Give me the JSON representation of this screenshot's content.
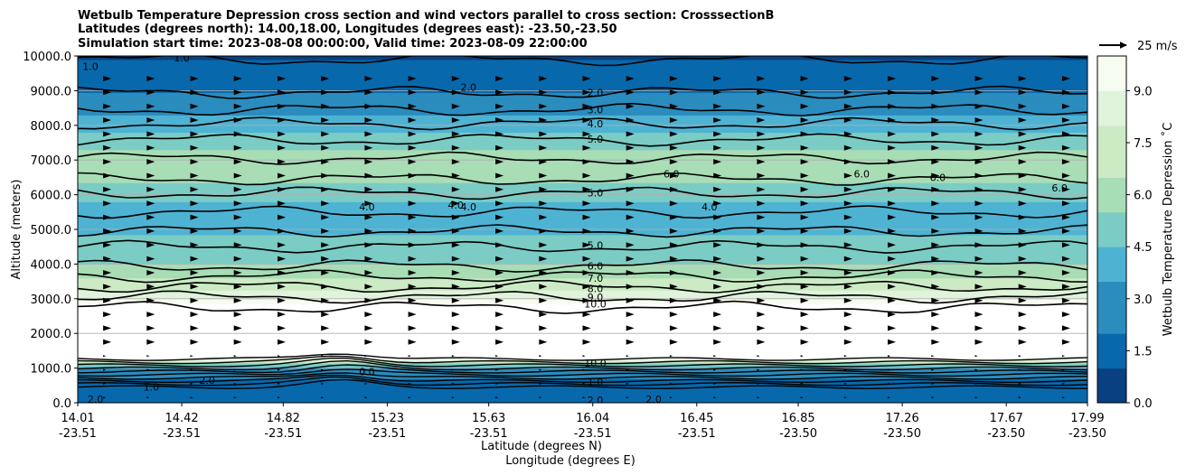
{
  "chart_data": {
    "type": "contour",
    "title_lines": [
      "Wetbulb Temperature Depression cross section and wind vectors parallel to cross section: CrosssectionB",
      "Latitudes (degrees north): 14.00,18.00, Longitudes (degrees east): -23.50,-23.50",
      "Simulation start time: 2023-08-08 00:00:00, Valid time: 2023-08-09 22:00:00"
    ],
    "xlabel_line1": "Latitude (degrees N)",
    "xlabel_line2": "Longitude (degrees E)",
    "ylabel": "Altitude (meters)",
    "colorbar_label": "Wetbulb Temperature Depression ˚C",
    "quiver_key": "25 m/s",
    "xlim": [
      14.01,
      17.99
    ],
    "ylim": [
      0,
      10000
    ],
    "grid": "horizontal",
    "x_ticks": [
      {
        "lat": "14.01",
        "lon": "-23.51",
        "v": 14.01
      },
      {
        "lat": "14.42",
        "lon": "-23.51",
        "v": 14.42
      },
      {
        "lat": "14.82",
        "lon": "-23.51",
        "v": 14.82
      },
      {
        "lat": "15.23",
        "lon": "-23.51",
        "v": 15.23
      },
      {
        "lat": "15.63",
        "lon": "-23.51",
        "v": 15.63
      },
      {
        "lat": "16.04",
        "lon": "-23.51",
        "v": 16.04
      },
      {
        "lat": "16.45",
        "lon": "-23.51",
        "v": 16.45
      },
      {
        "lat": "16.85",
        "lon": "-23.50",
        "v": 16.85
      },
      {
        "lat": "17.26",
        "lon": "-23.50",
        "v": 17.26
      },
      {
        "lat": "17.67",
        "lon": "-23.50",
        "v": 17.67
      },
      {
        "lat": "17.99",
        "lon": "-23.50",
        "v": 17.99
      }
    ],
    "y_ticks": [
      {
        "label": "0.0",
        "v": 0
      },
      {
        "label": "1000.0",
        "v": 1000
      },
      {
        "label": "2000.0",
        "v": 2000
      },
      {
        "label": "3000.0",
        "v": 3000
      },
      {
        "label": "4000.0",
        "v": 4000
      },
      {
        "label": "5000.0",
        "v": 5000
      },
      {
        "label": "6000.0",
        "v": 6000
      },
      {
        "label": "7000.0",
        "v": 7000
      },
      {
        "label": "8000.0",
        "v": 8000
      },
      {
        "label": "9000.0",
        "v": 9000
      },
      {
        "label": "10000.0",
        "v": 10000
      }
    ],
    "colorbar_ticks": [
      {
        "label": "0.0",
        "v": 0
      },
      {
        "label": "1.5",
        "v": 1.5
      },
      {
        "label": "3.0",
        "v": 3.0
      },
      {
        "label": "4.5",
        "v": 4.5
      },
      {
        "label": "6.0",
        "v": 6.0
      },
      {
        "label": "7.5",
        "v": 7.5
      },
      {
        "label": "9.0",
        "v": 9.0
      }
    ],
    "colorbar_range": [
      0,
      10
    ],
    "colormap": [
      "#084081",
      "#0868ac",
      "#2b8cbe",
      "#4eb3d3",
      "#7bccc4",
      "#a8ddb5",
      "#ccebc5",
      "#e0f3db",
      "#f7fcf0"
    ],
    "depression_profile": [
      {
        "alt": 0,
        "val": 1.5
      },
      {
        "alt": 400,
        "val": 1.5
      },
      {
        "alt": 700,
        "val": 2.2
      },
      {
        "alt": 1000,
        "val": 3.2
      },
      {
        "alt": 1150,
        "val": 6.0
      },
      {
        "alt": 1300,
        "val": 10.0
      },
      {
        "alt": 2700,
        "val": 10.0
      },
      {
        "alt": 3000,
        "val": 9.0
      },
      {
        "alt": 3200,
        "val": 8.0
      },
      {
        "alt": 3500,
        "val": 7.0
      },
      {
        "alt": 3800,
        "val": 6.0
      },
      {
        "alt": 4300,
        "val": 5.0
      },
      {
        "alt": 4800,
        "val": 4.5
      },
      {
        "alt": 5200,
        "val": 4.2
      },
      {
        "alt": 5600,
        "val": 3.8
      },
      {
        "alt": 6000,
        "val": 5.0
      },
      {
        "alt": 6500,
        "val": 5.8
      },
      {
        "alt": 7000,
        "val": 6.2
      },
      {
        "alt": 7500,
        "val": 5.2
      },
      {
        "alt": 7800,
        "val": 4.5
      },
      {
        "alt": 8200,
        "val": 3.5
      },
      {
        "alt": 8700,
        "val": 2.6
      },
      {
        "alt": 9100,
        "val": 2.0
      },
      {
        "alt": 9600,
        "val": 1.4
      },
      {
        "alt": 10000,
        "val": 1.0
      }
    ],
    "contours": [
      {
        "level": "1.0",
        "alt": 9900
      },
      {
        "level": "2.0",
        "alt": 8950
      },
      {
        "level": "3.0",
        "alt": 8450
      },
      {
        "level": "4.0",
        "alt": 8050
      },
      {
        "level": "5.0",
        "alt": 7580
      },
      {
        "level": "6.0",
        "alt": 7050
      },
      {
        "level": "5.0",
        "alt": 6450
      },
      {
        "level": "5.0",
        "alt": 6050
      },
      {
        "level": "4.0",
        "alt": 5500
      },
      {
        "level": "4.0",
        "alt": 4950
      },
      {
        "level": "5.0",
        "alt": 4500
      },
      {
        "level": "6.0",
        "alt": 3950
      },
      {
        "level": "7.0",
        "alt": 3650
      },
      {
        "level": "8.0",
        "alt": 3350
      },
      {
        "level": "9.0",
        "alt": 3050
      },
      {
        "level": "10.0",
        "alt": 2750
      }
    ],
    "visible_contour_labels": [
      {
        "text": "1.0",
        "x": 14.06,
        "alt": 9700
      },
      {
        "text": "1.0",
        "x": 14.42,
        "alt": 9950
      },
      {
        "text": "2.0",
        "x": 15.55,
        "alt": 9100
      },
      {
        "text": "2.0",
        "x": 16.05,
        "alt": 8950
      },
      {
        "text": "3.0",
        "x": 16.05,
        "alt": 8450
      },
      {
        "text": "4.0",
        "x": 16.05,
        "alt": 8050
      },
      {
        "text": "5.0",
        "x": 16.05,
        "alt": 7600
      },
      {
        "text": "6.0",
        "x": 16.35,
        "alt": 6600
      },
      {
        "text": "6.0",
        "x": 17.1,
        "alt": 6600
      },
      {
        "text": "6.0",
        "x": 17.4,
        "alt": 6500
      },
      {
        "text": "6.0",
        "x": 17.88,
        "alt": 6200
      },
      {
        "text": "5.0",
        "x": 16.05,
        "alt": 6050
      },
      {
        "text": "4.0",
        "x": 15.15,
        "alt": 5650
      },
      {
        "text": "4.0",
        "x": 15.5,
        "alt": 5700
      },
      {
        "text": "4.0",
        "x": 15.55,
        "alt": 5650
      },
      {
        "text": "4.0",
        "x": 16.5,
        "alt": 5650
      },
      {
        "text": "5.0",
        "x": 16.05,
        "alt": 4550
      },
      {
        "text": "6.0",
        "x": 16.05,
        "alt": 3950
      },
      {
        "text": "7.0",
        "x": 16.05,
        "alt": 3600
      },
      {
        "text": "8.0",
        "x": 16.05,
        "alt": 3300
      },
      {
        "text": "9.0",
        "x": 16.05,
        "alt": 3050
      },
      {
        "text": "10.0",
        "x": 16.05,
        "alt": 2850
      },
      {
        "text": "10.0",
        "x": 16.05,
        "alt": 1150
      },
      {
        "text": "0.0",
        "x": 15.15,
        "alt": 900
      },
      {
        "text": "1.0",
        "x": 16.05,
        "alt": 600
      },
      {
        "text": "2.0",
        "x": 14.52,
        "alt": 650
      },
      {
        "text": "1.0",
        "x": 14.3,
        "alt": 450
      },
      {
        "text": "2.0",
        "x": 16.05,
        "alt": 80
      },
      {
        "text": "2.0",
        "x": 16.28,
        "alt": 100
      },
      {
        "text": "2.0",
        "x": 14.08,
        "alt": 100
      }
    ]
  }
}
